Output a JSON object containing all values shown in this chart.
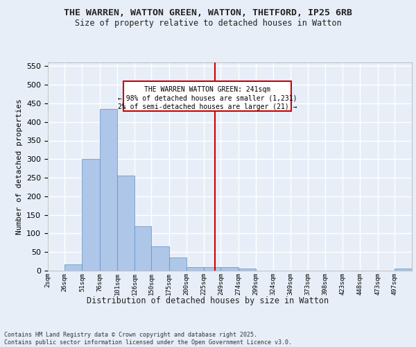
{
  "title": "THE WARREN, WATTON GREEN, WATTON, THETFORD, IP25 6RB",
  "subtitle": "Size of property relative to detached houses in Watton",
  "xlabel": "Distribution of detached houses by size in Watton",
  "ylabel": "Number of detached properties",
  "footer_line1": "Contains HM Land Registry data © Crown copyright and database right 2025.",
  "footer_line2": "Contains public sector information licensed under the Open Government Licence v3.0.",
  "annotation_line1": "THE WARREN WATTON GREEN: 241sqm",
  "annotation_line2": "← 98% of detached houses are smaller (1,231)",
  "annotation_line3": "2% of semi-detached houses are larger (21) →",
  "property_size": 241,
  "bar_color": "#aec6e8",
  "bar_edge_color": "#5a8fc2",
  "vline_color": "#cc0000",
  "background_color": "#e8eef8",
  "grid_color": "#ffffff",
  "categories": [
    "2sqm",
    "26sqm",
    "51sqm",
    "76sqm",
    "101sqm",
    "126sqm",
    "150sqm",
    "175sqm",
    "200sqm",
    "225sqm",
    "249sqm",
    "274sqm",
    "299sqm",
    "324sqm",
    "349sqm",
    "373sqm",
    "398sqm",
    "423sqm",
    "448sqm",
    "473sqm",
    "497sqm"
  ],
  "values": [
    0,
    17,
    300,
    435,
    255,
    120,
    65,
    35,
    10,
    10,
    10,
    5,
    0,
    0,
    0,
    0,
    0,
    0,
    0,
    0,
    5
  ],
  "bin_edges": [
    2,
    26,
    51,
    76,
    101,
    126,
    150,
    175,
    200,
    225,
    249,
    274,
    299,
    324,
    349,
    373,
    398,
    423,
    448,
    473,
    497,
    522
  ],
  "ylim": [
    0,
    560
  ],
  "yticks": [
    0,
    50,
    100,
    150,
    200,
    250,
    300,
    350,
    400,
    450,
    500,
    550
  ]
}
